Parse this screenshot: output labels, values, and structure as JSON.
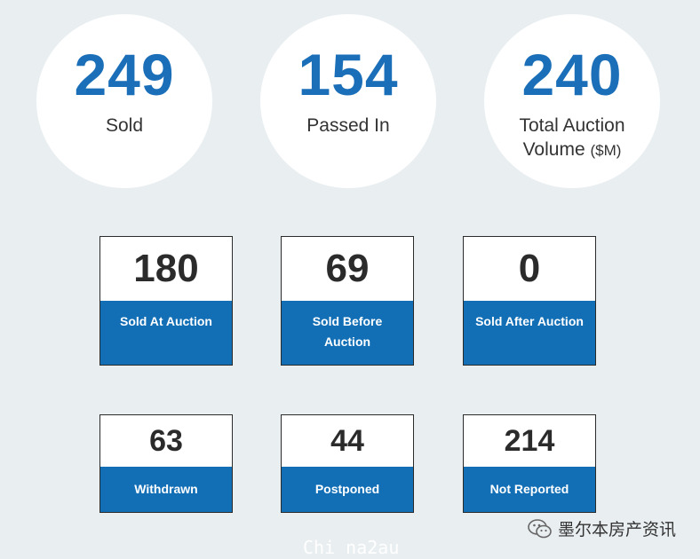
{
  "summary": [
    {
      "value": "249",
      "label": "Sold",
      "unit": ""
    },
    {
      "value": "154",
      "label": "Passed In",
      "unit": ""
    },
    {
      "value": "240",
      "label": "Total Auction Volume",
      "unit": "($M)"
    }
  ],
  "cards": [
    {
      "value": "180",
      "label": "Sold At Auction"
    },
    {
      "value": "69",
      "label": "Sold Before Auction"
    },
    {
      "value": "0",
      "label": "Sold After Auction"
    },
    {
      "value": "63",
      "label": "Withdrawn"
    },
    {
      "value": "44",
      "label": "Postponed"
    },
    {
      "value": "214",
      "label": "Not Reported"
    }
  ],
  "watermark": "Chi na2au",
  "wechat_label": "墨尔本房产资讯",
  "colors": {
    "accent": "#126fb6",
    "number_blue": "#1a6fb8",
    "background": "#e9eef1"
  }
}
